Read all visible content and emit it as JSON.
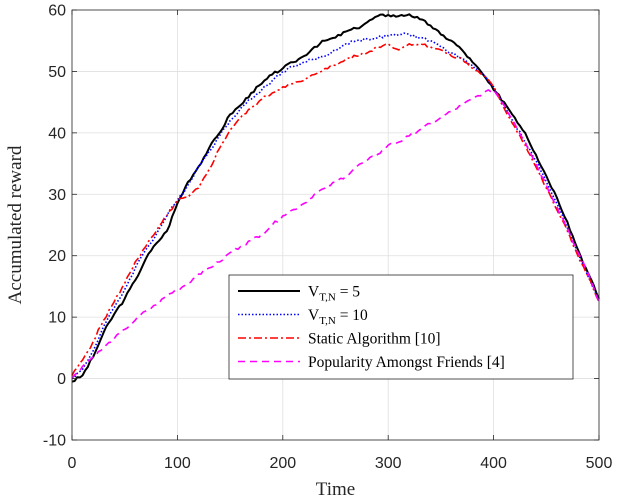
{
  "chart_data": {
    "type": "line",
    "title": "",
    "xlabel": "Time",
    "ylabel": "Accumulated reward",
    "xlim": [
      0,
      500
    ],
    "ylim": [
      -10,
      60
    ],
    "xticks": [
      0,
      100,
      200,
      300,
      400,
      500
    ],
    "yticks": [
      -10,
      0,
      10,
      20,
      30,
      40,
      50,
      60
    ],
    "grid": true,
    "legend_position": "lower-right",
    "series": [
      {
        "name": "V_{T,N} = 5",
        "label_main": "V",
        "label_sub": "T,N",
        "label_rest": " = 5",
        "color": "#000000",
        "style": "solid",
        "x": [
          0,
          10,
          20,
          30,
          40,
          50,
          60,
          70,
          80,
          90,
          100,
          110,
          120,
          130,
          140,
          150,
          160,
          170,
          180,
          190,
          200,
          210,
          220,
          230,
          240,
          250,
          260,
          270,
          280,
          290,
          300,
          310,
          320,
          330,
          340,
          350,
          360,
          370,
          380,
          390,
          400,
          410,
          420,
          430,
          440,
          450,
          460,
          470,
          480,
          490,
          500
        ],
        "y": [
          -0.5,
          0.5,
          3.5,
          7.5,
          10.5,
          13,
          16,
          19.5,
          22,
          24,
          28.5,
          32,
          34.5,
          37.5,
          40,
          43,
          44.5,
          46.5,
          48,
          49.5,
          50.5,
          51.5,
          52.5,
          54,
          55,
          55.5,
          56.5,
          57,
          58,
          59,
          59.2,
          59,
          59.3,
          58.5,
          57.5,
          56,
          55,
          53.5,
          51.5,
          49.5,
          47,
          45,
          42.5,
          40,
          36.5,
          33,
          29.5,
          25.5,
          21,
          17,
          13
        ]
      },
      {
        "name": "V_{T,N} = 10",
        "label_main": "V",
        "label_sub": "T,N",
        "label_rest": " = 10",
        "color": "#0000ff",
        "style": "dotted",
        "x": [
          0,
          10,
          20,
          30,
          40,
          50,
          60,
          70,
          80,
          90,
          100,
          110,
          120,
          130,
          140,
          150,
          160,
          170,
          180,
          190,
          200,
          210,
          220,
          230,
          240,
          250,
          260,
          270,
          280,
          290,
          300,
          310,
          320,
          330,
          340,
          350,
          360,
          370,
          380,
          390,
          400,
          410,
          420,
          430,
          440,
          450,
          460,
          470,
          480,
          490,
          500
        ],
        "y": [
          0,
          1.5,
          4.5,
          8.5,
          11.5,
          14.5,
          18,
          21,
          23.5,
          26.5,
          29,
          31.5,
          34.5,
          37,
          39.5,
          42,
          44,
          45.5,
          47,
          48.5,
          50,
          50.8,
          51.5,
          52,
          52.5,
          53.5,
          54.5,
          55,
          55.3,
          55.5,
          55.8,
          56,
          56,
          55.5,
          55,
          54,
          53,
          52,
          51,
          49.5,
          47.5,
          44.5,
          41.5,
          38.5,
          35.5,
          32,
          28.5,
          24.5,
          20.5,
          16.5,
          13
        ]
      },
      {
        "name": "Static Algorithm [10]",
        "color": "#ff0000",
        "style": "dashdot",
        "x": [
          0,
          10,
          20,
          30,
          40,
          50,
          60,
          70,
          80,
          90,
          100,
          110,
          120,
          130,
          140,
          150,
          160,
          170,
          180,
          190,
          200,
          210,
          220,
          230,
          240,
          250,
          260,
          270,
          280,
          290,
          300,
          310,
          320,
          330,
          340,
          350,
          360,
          370,
          380,
          390,
          400,
          410,
          420,
          430,
          440,
          450,
          460,
          470,
          480,
          490,
          500
        ],
        "y": [
          0.5,
          3,
          6,
          9.5,
          12.5,
          15.5,
          19,
          21.5,
          24,
          26.5,
          29,
          29.5,
          31,
          34,
          37.5,
          40.5,
          42.5,
          44,
          45.5,
          46.5,
          47.5,
          48,
          48.5,
          49.5,
          50.5,
          51,
          52,
          52.5,
          53,
          54,
          54.5,
          53.5,
          54.5,
          54.5,
          54,
          53.5,
          52.5,
          52,
          50.5,
          49.5,
          47.5,
          44,
          41,
          38,
          34.5,
          31,
          27.5,
          24,
          20,
          16.5,
          12.5
        ]
      },
      {
        "name": "Popularity Amongst Friends [4]",
        "color": "#ff00ff",
        "style": "dashed",
        "x": [
          0,
          10,
          20,
          30,
          40,
          50,
          60,
          70,
          80,
          90,
          100,
          110,
          120,
          130,
          140,
          150,
          160,
          170,
          180,
          190,
          200,
          210,
          220,
          230,
          240,
          250,
          260,
          270,
          280,
          290,
          300,
          310,
          320,
          330,
          340,
          350,
          360,
          370,
          380,
          390,
          400,
          410,
          420,
          430,
          440,
          450,
          460,
          470,
          480,
          490,
          500
        ],
        "y": [
          0,
          2,
          3.5,
          5,
          6.5,
          8,
          9.5,
          11,
          12,
          13.5,
          14.5,
          15.5,
          17,
          18,
          19,
          20.5,
          21.5,
          22.5,
          23.5,
          25,
          26.5,
          27.5,
          28.5,
          30,
          31,
          32,
          33,
          34.5,
          35.5,
          36.5,
          38,
          38.5,
          39.5,
          40.5,
          41.5,
          42.5,
          43.5,
          44.5,
          45.5,
          46.5,
          47,
          44.5,
          41.5,
          38.5,
          35,
          31.5,
          28,
          24.5,
          20.5,
          17,
          12.5
        ]
      }
    ]
  }
}
